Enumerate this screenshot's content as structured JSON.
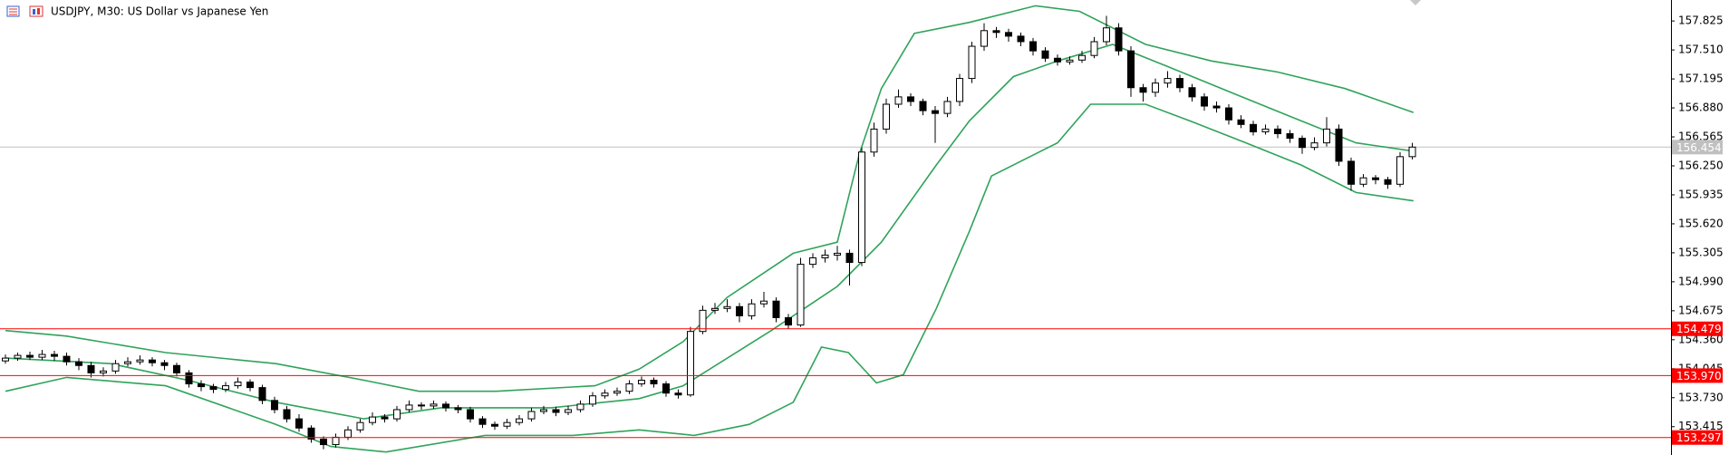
{
  "chart_data": {
    "type": "candlestick",
    "title": "USDJPY, M30:  US Dollar vs Japanese Yen",
    "ylim": [
      153.107,
      158.053
    ],
    "yticks": [
      157.825,
      {
        "value": 157.51,
        "label": "157.510"
      },
      157.195,
      {
        "value": 156.88,
        "label": "156.880"
      },
      156.565,
      {
        "value": 156.25,
        "label": "156.250"
      },
      155.935,
      {
        "value": 155.62,
        "label": "155.620"
      },
      155.305,
      {
        "value": 154.99,
        "label": "154.990"
      },
      154.675,
      {
        "value": 154.36,
        "label": "154.360"
      },
      154.045,
      {
        "value": 153.73,
        "label": "153.730"
      },
      153.415
    ],
    "up_color": "#ffffff",
    "down_color": "#000000",
    "ohlc": [
      [
        154.13,
        154.2,
        154.1,
        154.16
      ],
      [
        154.16,
        154.22,
        154.13,
        154.19
      ],
      [
        154.19,
        154.23,
        154.14,
        154.17
      ],
      [
        154.17,
        154.25,
        154.14,
        154.2
      ],
      [
        154.2,
        154.24,
        154.13,
        154.18
      ],
      [
        154.18,
        154.22,
        154.08,
        154.12
      ],
      [
        154.12,
        154.16,
        154.03,
        154.08
      ],
      [
        154.08,
        154.12,
        153.95,
        154.0
      ],
      [
        154.0,
        154.06,
        153.96,
        154.02
      ],
      [
        154.02,
        154.14,
        153.99,
        154.1
      ],
      [
        154.1,
        154.17,
        154.07,
        154.12
      ],
      [
        154.12,
        154.19,
        154.09,
        154.14
      ],
      [
        154.14,
        154.17,
        154.07,
        154.11
      ],
      [
        154.11,
        154.14,
        154.03,
        154.08
      ],
      [
        154.08,
        154.11,
        153.96,
        154.0
      ],
      [
        154.0,
        154.03,
        153.84,
        153.88
      ],
      [
        153.88,
        153.92,
        153.8,
        153.85
      ],
      [
        153.85,
        153.88,
        153.78,
        153.82
      ],
      [
        153.82,
        153.9,
        153.79,
        153.86
      ],
      [
        153.86,
        153.95,
        153.83,
        153.9
      ],
      [
        153.9,
        153.93,
        153.8,
        153.84
      ],
      [
        153.84,
        153.87,
        153.66,
        153.7
      ],
      [
        153.7,
        153.74,
        153.56,
        153.6
      ],
      [
        153.6,
        153.64,
        153.46,
        153.5
      ],
      [
        153.5,
        153.55,
        153.36,
        153.4
      ],
      [
        153.4,
        153.43,
        153.24,
        153.28
      ],
      [
        153.28,
        153.31,
        153.17,
        153.22
      ],
      [
        153.22,
        153.34,
        153.19,
        153.3
      ],
      [
        153.3,
        153.42,
        153.27,
        153.38
      ],
      [
        153.38,
        153.5,
        153.35,
        153.46
      ],
      [
        153.46,
        153.57,
        153.43,
        153.52
      ],
      [
        153.52,
        153.55,
        153.46,
        153.5
      ],
      [
        153.5,
        153.64,
        153.47,
        153.6
      ],
      [
        153.6,
        153.7,
        153.57,
        153.65
      ],
      [
        153.65,
        153.68,
        153.6,
        153.64
      ],
      [
        153.64,
        153.7,
        153.61,
        153.66
      ],
      [
        153.66,
        153.69,
        153.58,
        153.62
      ],
      [
        153.62,
        153.65,
        153.56,
        153.6
      ],
      [
        153.6,
        153.63,
        153.46,
        153.5
      ],
      [
        153.5,
        153.53,
        153.4,
        153.44
      ],
      [
        153.44,
        153.47,
        153.38,
        153.42
      ],
      [
        153.42,
        153.5,
        153.39,
        153.46
      ],
      [
        153.46,
        153.54,
        153.43,
        153.5
      ],
      [
        153.5,
        153.62,
        153.47,
        153.58
      ],
      [
        153.58,
        153.64,
        153.55,
        153.6
      ],
      [
        153.6,
        153.63,
        153.53,
        153.57
      ],
      [
        153.57,
        153.64,
        153.54,
        153.6
      ],
      [
        153.6,
        153.7,
        153.57,
        153.66
      ],
      [
        153.66,
        153.79,
        153.63,
        153.75
      ],
      [
        153.75,
        153.82,
        153.72,
        153.78
      ],
      [
        153.78,
        153.84,
        153.75,
        153.8
      ],
      [
        153.8,
        153.92,
        153.77,
        153.88
      ],
      [
        153.88,
        153.96,
        153.85,
        153.92
      ],
      [
        153.92,
        153.95,
        153.84,
        153.88
      ],
      [
        153.88,
        153.91,
        153.74,
        153.78
      ],
      [
        153.78,
        153.82,
        153.72,
        153.76
      ],
      [
        153.76,
        154.5,
        153.74,
        154.45
      ],
      [
        154.45,
        154.73,
        154.42,
        154.68
      ],
      [
        154.68,
        154.76,
        154.64,
        154.7
      ],
      [
        154.7,
        154.8,
        154.66,
        154.72
      ],
      [
        154.72,
        154.76,
        154.55,
        154.62
      ],
      [
        154.62,
        154.8,
        154.58,
        154.75
      ],
      [
        154.75,
        154.88,
        154.71,
        154.78
      ],
      [
        154.78,
        154.82,
        154.55,
        154.6
      ],
      [
        154.6,
        154.64,
        154.48,
        154.52
      ],
      [
        154.52,
        155.25,
        154.5,
        155.18
      ],
      [
        155.18,
        155.3,
        155.14,
        155.25
      ],
      [
        155.25,
        155.34,
        155.2,
        155.28
      ],
      [
        155.28,
        155.38,
        155.22,
        155.3
      ],
      [
        155.3,
        155.34,
        154.95,
        155.2
      ],
      [
        155.2,
        156.45,
        155.16,
        156.4
      ],
      [
        156.4,
        156.72,
        156.35,
        156.65
      ],
      [
        156.65,
        156.98,
        156.6,
        156.92
      ],
      [
        156.92,
        157.08,
        156.88,
        157.0
      ],
      [
        157.0,
        157.04,
        156.9,
        156.95
      ],
      [
        156.95,
        156.98,
        156.8,
        156.85
      ],
      [
        156.85,
        156.9,
        156.5,
        156.82
      ],
      [
        156.82,
        157.0,
        156.78,
        156.95
      ],
      [
        156.95,
        157.25,
        156.9,
        157.2
      ],
      [
        157.2,
        157.6,
        157.15,
        157.55
      ],
      [
        157.55,
        157.8,
        157.5,
        157.72
      ],
      [
        157.72,
        157.76,
        157.64,
        157.7
      ],
      [
        157.7,
        157.74,
        157.6,
        157.66
      ],
      [
        157.66,
        157.7,
        157.55,
        157.6
      ],
      [
        157.6,
        157.64,
        157.45,
        157.5
      ],
      [
        157.5,
        157.54,
        157.38,
        157.42
      ],
      [
        157.42,
        157.46,
        157.34,
        157.38
      ],
      [
        157.38,
        157.44,
        157.35,
        157.4
      ],
      [
        157.4,
        157.5,
        157.37,
        157.45
      ],
      [
        157.45,
        157.65,
        157.42,
        157.6
      ],
      [
        157.6,
        157.88,
        157.56,
        157.75
      ],
      [
        157.75,
        157.8,
        157.45,
        157.5
      ],
      [
        157.5,
        157.55,
        157.0,
        157.1
      ],
      [
        157.1,
        157.14,
        156.95,
        157.05
      ],
      [
        157.05,
        157.2,
        157.0,
        157.15
      ],
      [
        157.15,
        157.28,
        157.1,
        157.2
      ],
      [
        157.2,
        157.24,
        157.05,
        157.1
      ],
      [
        157.1,
        157.14,
        156.95,
        157.0
      ],
      [
        157.0,
        157.04,
        156.85,
        156.9
      ],
      [
        156.9,
        156.95,
        156.83,
        156.88
      ],
      [
        156.88,
        156.92,
        156.7,
        156.75
      ],
      [
        156.75,
        156.8,
        156.66,
        156.7
      ],
      [
        156.7,
        156.74,
        156.58,
        156.62
      ],
      [
        156.62,
        156.7,
        156.59,
        156.65
      ],
      [
        156.65,
        156.69,
        156.55,
        156.6
      ],
      [
        156.6,
        156.64,
        156.5,
        156.55
      ],
      [
        156.55,
        156.58,
        156.38,
        156.45
      ],
      [
        156.45,
        156.56,
        156.42,
        156.5
      ],
      [
        156.5,
        156.78,
        156.46,
        156.65
      ],
      [
        156.65,
        156.7,
        156.25,
        156.3
      ],
      [
        156.3,
        156.34,
        155.98,
        156.05
      ],
      [
        156.05,
        156.16,
        156.02,
        156.12
      ],
      [
        156.12,
        156.15,
        156.05,
        156.1
      ],
      [
        156.1,
        156.13,
        156.0,
        156.05
      ],
      [
        156.05,
        156.4,
        156.02,
        156.35
      ],
      [
        156.35,
        156.5,
        156.32,
        156.454
      ]
    ],
    "bands": [
      {
        "color": "#2fa35a",
        "x": [
          0,
          5,
          13.1,
          22.1,
          29.3,
          33.8,
          40.1,
          48.2,
          51.8,
          55.4,
          59,
          64.4,
          68,
          69.8,
          71.6,
          74.3,
          78.8,
          84.2,
          87.8,
          93.2,
          98.6,
          104,
          109.5,
          115.1
        ],
        "values": [
          154.46,
          154.4,
          154.22,
          154.1,
          153.92,
          153.8,
          153.8,
          153.86,
          154.04,
          154.34,
          154.82,
          155.3,
          155.42,
          156.38,
          157.09,
          157.69,
          157.81,
          157.99,
          157.93,
          157.57,
          157.39,
          157.27,
          157.09,
          156.83
        ]
      },
      {
        "color": "#2fa35a",
        "x": [
          0,
          8.6,
          14.9,
          22.1,
          29.3,
          35.6,
          44.6,
          51.8,
          55.4,
          62.6,
          68,
          71.6,
          76.1,
          78.8,
          82.4,
          86,
          90.5,
          95,
          100.5,
          105.9,
          110.4,
          115.1
        ],
        "values": [
          154.16,
          154.1,
          153.92,
          153.68,
          153.5,
          153.62,
          153.62,
          153.72,
          153.86,
          154.46,
          154.94,
          155.42,
          156.26,
          156.74,
          157.22,
          157.39,
          157.57,
          157.33,
          157.03,
          156.74,
          156.5,
          156.41
        ]
      },
      {
        "color": "#2fa35a",
        "x": [
          0,
          5,
          13.1,
          22.1,
          26.6,
          31.1,
          39.2,
          46.4,
          51.8,
          56.3,
          60.8,
          64.4,
          66.7,
          68.9,
          71.2,
          73.4,
          76.1,
          78.8,
          80.6,
          86,
          88.7,
          93.2,
          96.8,
          101.4,
          105.9,
          110.4,
          115.1
        ],
        "values": [
          153.8,
          153.95,
          153.86,
          153.44,
          153.2,
          153.14,
          153.32,
          153.32,
          153.38,
          153.32,
          153.44,
          153.68,
          154.28,
          154.22,
          153.89,
          153.98,
          154.7,
          155.54,
          156.14,
          156.5,
          156.92,
          156.92,
          156.74,
          156.5,
          156.26,
          155.96,
          155.87
        ]
      }
    ],
    "hlines": [
      {
        "value": 154.479,
        "color": "#ff0000"
      },
      {
        "value": 153.97,
        "label": "153.970",
        "color": "#ff0000"
      },
      {
        "value": 153.297,
        "color": "#ff0000"
      }
    ],
    "price_line": {
      "value": 156.454,
      "color": "#c0c0c0"
    }
  }
}
